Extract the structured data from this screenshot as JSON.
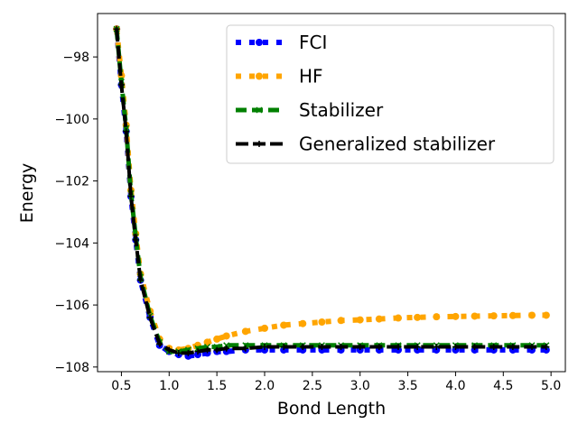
{
  "chart_data": {
    "type": "line",
    "title": "",
    "xlabel": "Bond Length",
    "ylabel": "Energy",
    "xlim": [
      0.25,
      5.15
    ],
    "ylim": [
      -108.15,
      -96.6
    ],
    "xticks": [
      0.5,
      1.0,
      1.5,
      2.0,
      2.5,
      3.0,
      3.5,
      4.0,
      4.5,
      5.0
    ],
    "xtick_labels": [
      "0.5",
      "1.0",
      "1.5",
      "2.0",
      "2.5",
      "3.0",
      "3.5",
      "4.0",
      "4.5",
      "5.0"
    ],
    "yticks": [
      -98,
      -100,
      -102,
      -104,
      -106,
      -108
    ],
    "ytick_labels": [
      "−98",
      "−100",
      "−102",
      "−104",
      "−106",
      "−108"
    ],
    "grid": false,
    "legend_position": "upper-right",
    "x": [
      0.45,
      0.5,
      0.55,
      0.6,
      0.65,
      0.7,
      0.8,
      0.9,
      1.0,
      1.1,
      1.2,
      1.3,
      1.4,
      1.5,
      1.6,
      1.8,
      2.0,
      2.2,
      2.4,
      2.6,
      2.8,
      3.0,
      3.2,
      3.4,
      3.6,
      3.8,
      4.0,
      4.2,
      4.4,
      4.6,
      4.8,
      4.95
    ],
    "series": [
      {
        "name": "FCI",
        "color": "#0000ff",
        "values": [
          -97.1,
          -98.9,
          -100.4,
          -102.5,
          -103.9,
          -105.2,
          -106.4,
          -107.3,
          -107.5,
          -107.6,
          -107.65,
          -107.6,
          -107.55,
          -107.5,
          -107.5,
          -107.45,
          -107.45,
          -107.45,
          -107.45,
          -107.45,
          -107.45,
          -107.45,
          -107.45,
          -107.45,
          -107.45,
          -107.45,
          -107.45,
          -107.45,
          -107.45,
          -107.45,
          -107.45,
          -107.45
        ]
      },
      {
        "name": "HF",
        "color": "#ffa500",
        "values": [
          -97.1,
          -98.6,
          -100.2,
          -102.3,
          -103.7,
          -105.0,
          -106.2,
          -107.1,
          -107.4,
          -107.45,
          -107.4,
          -107.3,
          -107.2,
          -107.1,
          -107.0,
          -106.85,
          -106.75,
          -106.65,
          -106.6,
          -106.55,
          -106.5,
          -106.48,
          -106.45,
          -106.42,
          -106.4,
          -106.38,
          -106.37,
          -106.36,
          -106.35,
          -106.34,
          -106.33,
          -106.33
        ]
      },
      {
        "name": "Stabilizer",
        "color": "#008000",
        "values": [
          -97.1,
          -98.8,
          -100.3,
          -102.4,
          -103.8,
          -105.1,
          -106.35,
          -107.2,
          -107.5,
          -107.5,
          -107.45,
          -107.4,
          -107.35,
          -107.35,
          -107.3,
          -107.3,
          -107.3,
          -107.3,
          -107.3,
          -107.3,
          -107.3,
          -107.3,
          -107.3,
          -107.3,
          -107.3,
          -107.3,
          -107.3,
          -107.3,
          -107.3,
          -107.3,
          -107.3,
          -107.3
        ]
      },
      {
        "name": "Generalized stabilizer",
        "color": "#000000",
        "values": [
          -97.1,
          -98.9,
          -100.4,
          -102.5,
          -103.9,
          -105.2,
          -106.4,
          -107.25,
          -107.45,
          -107.55,
          -107.55,
          -107.5,
          -107.45,
          -107.45,
          -107.4,
          -107.4,
          -107.35,
          -107.35,
          -107.35,
          -107.35,
          -107.35,
          -107.35,
          -107.35,
          -107.35,
          -107.35,
          -107.35,
          -107.35,
          -107.35,
          -107.35,
          -107.35,
          -107.35,
          -107.35
        ]
      }
    ]
  }
}
